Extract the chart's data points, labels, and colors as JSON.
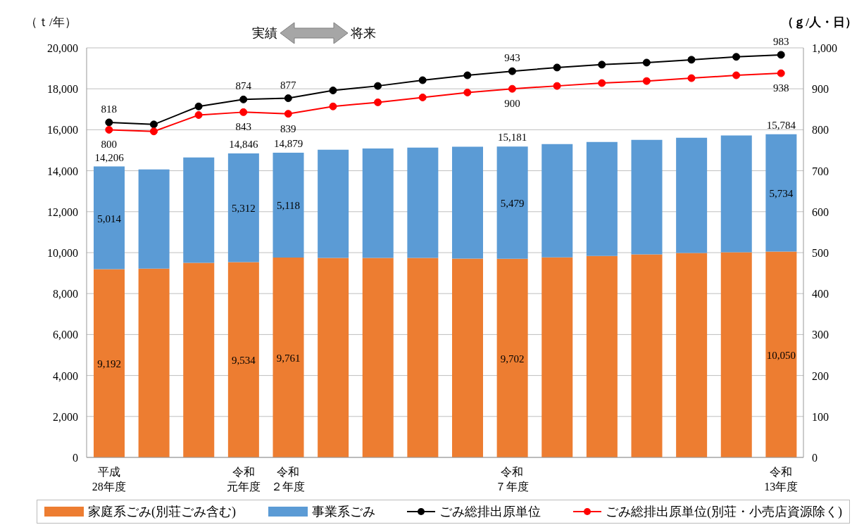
{
  "chart_data": {
    "type": "bar",
    "stacked": true,
    "ylabel": "（ｔ/年）",
    "y2label": "（ｇ/人・日）",
    "categories": [
      "平成28年度",
      null,
      null,
      "令和元年度",
      "令和２年度",
      null,
      null,
      null,
      null,
      "令和７年度",
      null,
      null,
      null,
      null,
      null,
      "令和13年度"
    ],
    "series": [
      {
        "name": "家庭系ごみ(別荘ごみ含む)",
        "color": "#ed7d31",
        "values": [
          9192,
          9220,
          9500,
          9534,
          9761,
          9740,
          9740,
          9740,
          9710,
          9702,
          9770,
          9840,
          9910,
          9980,
          10020,
          10050
        ],
        "value_labels": [
          "9,192",
          null,
          null,
          "9,534",
          "9,761",
          null,
          null,
          null,
          null,
          "9,702",
          null,
          null,
          null,
          null,
          null,
          "10,050"
        ]
      },
      {
        "name": "事業系ごみ",
        "color": "#5b9bd5",
        "values": [
          5014,
          4840,
          5150,
          5312,
          5118,
          5290,
          5350,
          5390,
          5460,
          5479,
          5530,
          5560,
          5600,
          5630,
          5700,
          5734
        ],
        "value_labels": [
          "5,014",
          null,
          null,
          "5,312",
          "5,118",
          null,
          null,
          null,
          null,
          "5,479",
          null,
          null,
          null,
          null,
          null,
          "5,734"
        ]
      },
      {
        "name": "ごみ総排出原単位",
        "type": "line",
        "axis": "y2",
        "color": "#000000",
        "values": [
          818,
          813,
          857,
          874,
          877,
          896,
          907,
          921,
          933,
          943,
          952,
          959,
          964,
          971,
          978,
          983
        ],
        "value_labels": [
          "818",
          null,
          null,
          "874",
          "877",
          null,
          null,
          null,
          null,
          "943",
          null,
          null,
          null,
          null,
          null,
          "983"
        ]
      },
      {
        "name": "ごみ総排出原単位(別荘・小売店資源除く)",
        "type": "line",
        "axis": "y2",
        "color": "#ff0000",
        "values": [
          800,
          796,
          836,
          843,
          839,
          857,
          867,
          879,
          891,
          900,
          907,
          914,
          919,
          926,
          933,
          938
        ],
        "value_labels": [
          "800",
          null,
          null,
          "843",
          "839",
          null,
          null,
          null,
          null,
          "900",
          null,
          null,
          null,
          null,
          null,
          "938"
        ]
      }
    ],
    "totals": [
      "14,206",
      null,
      null,
      "14,846",
      "14,879",
      null,
      null,
      null,
      null,
      "15,181",
      null,
      null,
      null,
      null,
      null,
      "15,784"
    ],
    "ylim": [
      0,
      20000
    ],
    "yticks": [
      {
        "value": 0,
        "label": "0"
      },
      {
        "value": 2000,
        "label": "2,000"
      },
      {
        "value": 4000,
        "label": "4,000"
      },
      {
        "value": 6000,
        "label": "6,000"
      },
      {
        "value": 8000,
        "label": "8,000"
      },
      {
        "value": 10000,
        "label": "10,000"
      },
      {
        "value": 12000,
        "label": "12,000"
      },
      {
        "value": 14000,
        "label": "14,000"
      },
      {
        "value": 16000,
        "label": "16,000"
      },
      {
        "value": 18000,
        "label": "18,000"
      },
      {
        "value": 20000,
        "label": "20,000"
      }
    ],
    "y2lim": [
      0,
      1000
    ],
    "y2ticks": [
      0,
      100,
      200,
      300,
      400,
      500,
      600,
      700,
      800,
      900,
      {
        "value": 1000,
        "label": "1,000"
      }
    ],
    "grid": "y",
    "legend": "bottom",
    "marker": "circle",
    "line_style": "solid",
    "annotations": [
      "実績",
      "将来"
    ]
  }
}
